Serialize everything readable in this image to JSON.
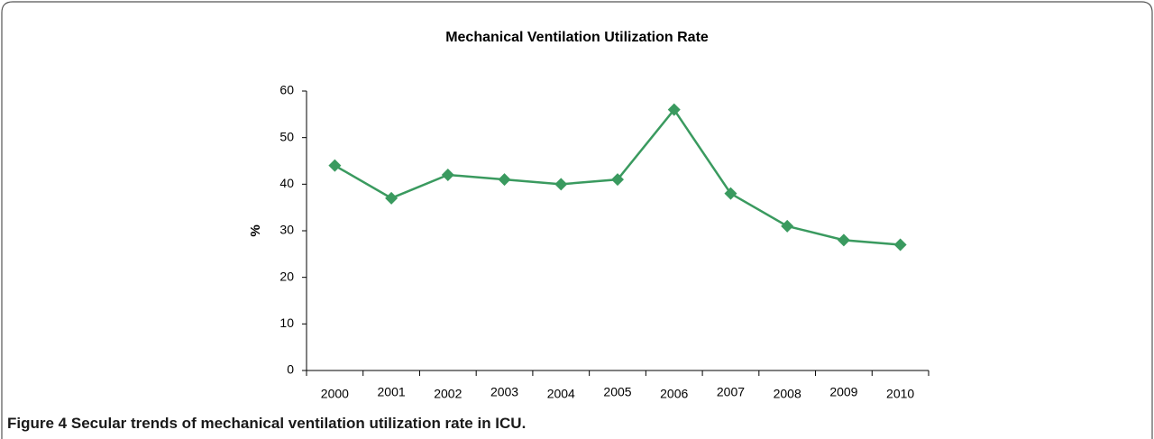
{
  "chart_data": {
    "type": "line",
    "title": "Mechanical Ventilation Utilization Rate",
    "y_label": "%",
    "categories": [
      "2000",
      "2001",
      "2002",
      "2003",
      "2004",
      "2005",
      "2006",
      "2007",
      "2008",
      "2009",
      "2010"
    ],
    "series": [
      {
        "name": "Mechanical ventilation utilization rate",
        "color": "#3a9a5f",
        "values": [
          44,
          37,
          42,
          41,
          40,
          41,
          56,
          38,
          31,
          28,
          27
        ]
      }
    ],
    "ylim": [
      0,
      60
    ],
    "yticks": [
      0,
      10,
      20,
      30,
      40,
      50,
      60
    ],
    "grid": false,
    "legend": false
  },
  "caption": {
    "label": "Figure 4",
    "text": "Secular trends of mechanical ventilation utilization rate in ICU."
  }
}
